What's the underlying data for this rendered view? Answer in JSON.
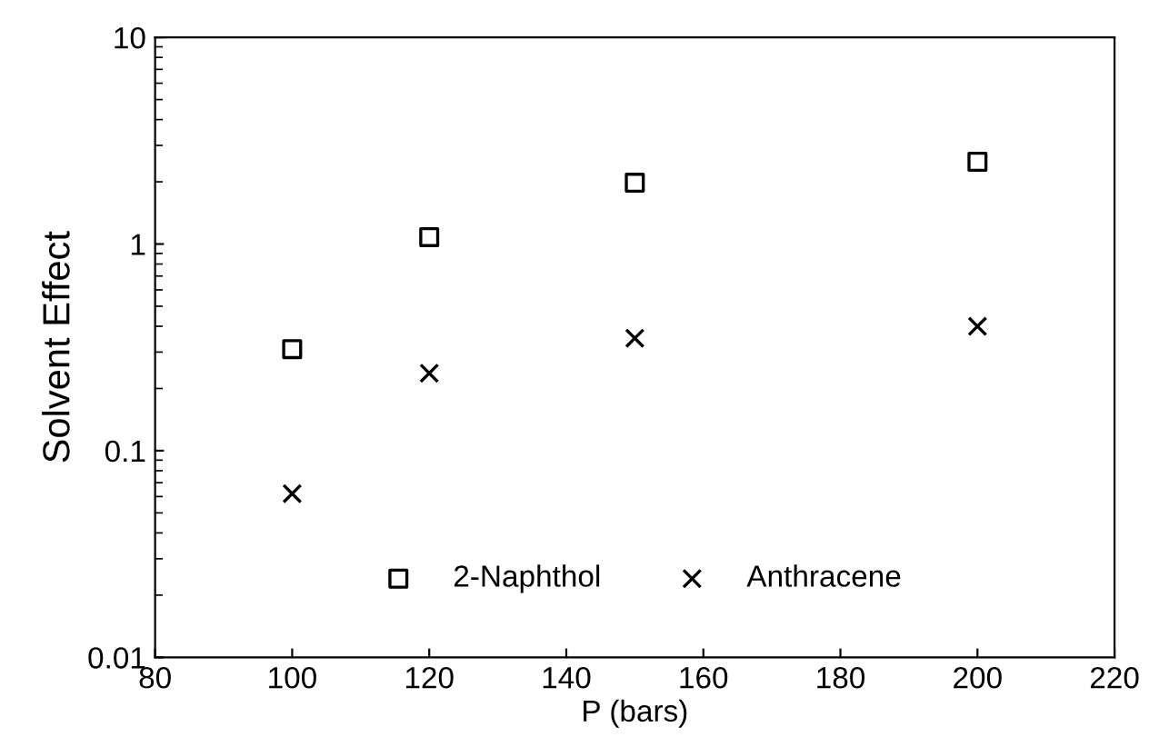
{
  "chart_data": {
    "type": "scatter",
    "xlabel": "P (bars)",
    "ylabel": "Solvent Effect",
    "log": "y",
    "x": [
      100,
      120,
      150,
      200
    ],
    "series": [
      {
        "name": "2-Naphthol",
        "color": "#000000",
        "marker": "square",
        "values": [
          0.31,
          1.08,
          1.98,
          2.5
        ]
      },
      {
        "name": "Anthracene",
        "color": "#000000",
        "marker": "cross",
        "values": [
          0.062,
          0.237,
          0.35,
          0.4
        ]
      }
    ],
    "xlim": [
      80,
      220
    ],
    "xticks": [
      80,
      100,
      120,
      140,
      160,
      180,
      200,
      220
    ],
    "ylim": [
      0.01,
      10
    ],
    "yticks": [
      0.01,
      0.1,
      1,
      10
    ],
    "grid": false,
    "legend": "bottom"
  }
}
